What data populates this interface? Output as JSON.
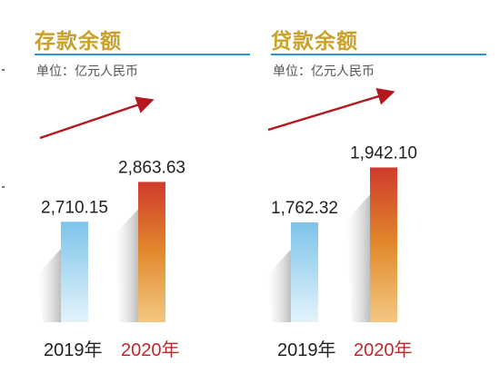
{
  "chart_data": [
    {
      "type": "bar",
      "title": "存款余额",
      "unit": "单位：亿元人民币",
      "categories": [
        "2019年",
        "2020年"
      ],
      "values": [
        2710.15,
        2863.63
      ],
      "value_labels": [
        "2,710.15",
        "2,863.63"
      ],
      "ylabel": "",
      "xlabel": "",
      "grid": false,
      "trend_arrow": true
    },
    {
      "type": "bar",
      "title": "贷款余额",
      "unit": "单位：亿元人民币",
      "categories": [
        "2019年",
        "2020年"
      ],
      "values": [
        1762.32,
        1942.1
      ],
      "value_labels": [
        "1,762.32",
        "1,942.10"
      ],
      "ylabel": "",
      "xlabel": "",
      "grid": false,
      "trend_arrow": true
    }
  ],
  "colors": {
    "title": "#c9a227",
    "rule": "#2a97d4",
    "label_2019": "#222222",
    "label_2020": "#c0282d",
    "bar_2019": [
      "#7cc4ea",
      "#e4f3fb"
    ],
    "bar_2020": [
      "#cf3a2c",
      "#e28a2c",
      "#f3c883"
    ],
    "arrow": "#b3181e"
  }
}
